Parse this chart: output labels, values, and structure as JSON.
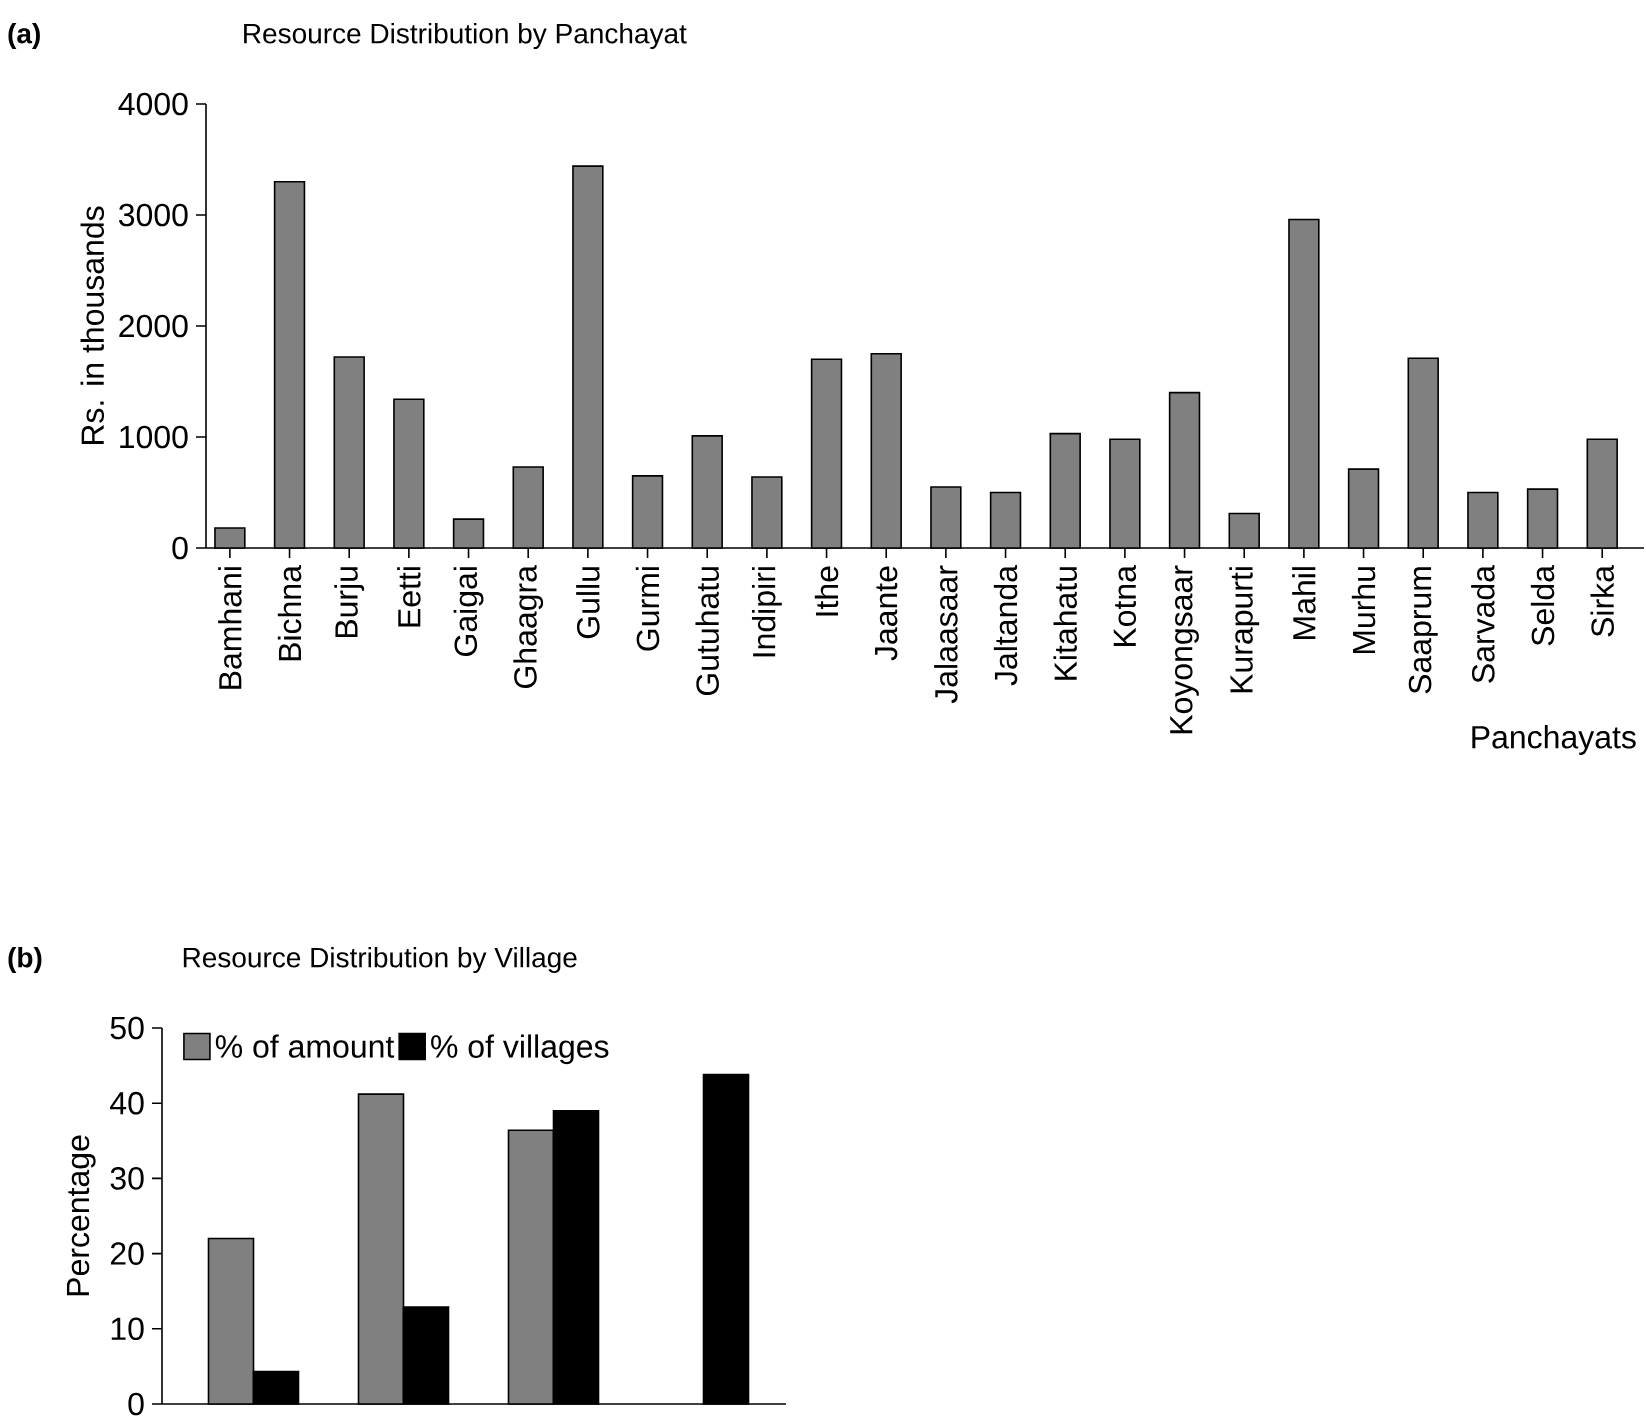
{
  "chart_data": [
    {
      "type": "bar",
      "title": "Resource Distribution by Panchayat",
      "xlabel": "Panchayats",
      "ylabel": "Rs. in thousands",
      "annotations": [
        "(a)"
      ],
      "categories": [
        "Bamhani",
        "Bichna",
        "Burju",
        "Eetti",
        "Gaigai",
        "Ghaagra",
        "Gullu",
        "Gurmi",
        "Gutuhatu",
        "Indipiri",
        "Ithe",
        "Jaante",
        "Jalaasaar",
        "Jaltanda",
        "Kitahatu",
        "Kotna",
        "Koyongsaar",
        "Kurapurti",
        "Mahil",
        "Murhu",
        "Saaprum",
        "Sarvada",
        "Selda",
        "Sirka"
      ],
      "values": [
        180,
        3300,
        1720,
        1340,
        260,
        730,
        3440,
        650,
        1010,
        640,
        1700,
        1750,
        550,
        500,
        1030,
        980,
        1400,
        310,
        2960,
        710,
        1710,
        500,
        530,
        980
      ],
      "color": "#808080",
      "ylim": [
        0,
        4000
      ],
      "yticks": [
        0,
        1000,
        2000,
        3000,
        4000
      ],
      "grid": false,
      "legend": false
    },
    {
      "type": "bar",
      "title": "Resource Distribution by Village",
      "ylabel": "Percentage",
      "annotations": [
        "(b)"
      ],
      "categories": [
        null,
        null,
        null,
        null
      ],
      "series": [
        {
          "name": "% of amount",
          "color": "#808080",
          "values": [
            22,
            41.2,
            36.4,
            null
          ]
        },
        {
          "name": "% of villages",
          "color": "#000000",
          "values": [
            4.3,
            12.9,
            39,
            43.8
          ]
        }
      ],
      "ylim": [
        0,
        50
      ],
      "yticks": [
        0,
        10,
        20,
        30,
        40,
        50
      ],
      "grid": false,
      "legend": "top left",
      "tick_labels": "y"
    }
  ]
}
